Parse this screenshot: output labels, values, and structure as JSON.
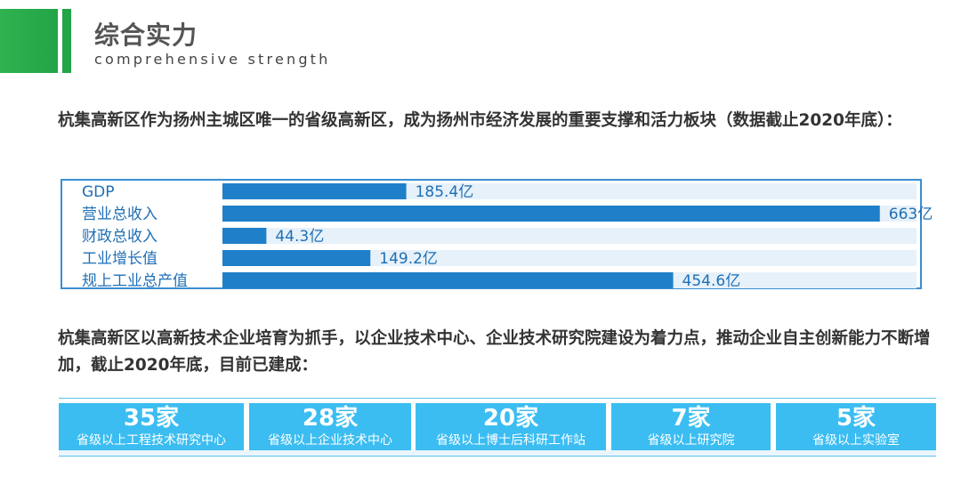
{
  "header": {
    "title": "综合实力",
    "subtitle": "comprehensive strength"
  },
  "intro_text": "杭集高新区作为扬州主城区唯一的省级高新区，成为扬州市经济发展的重要支撑和活力板块（数据截止2020年底）：",
  "chart_data": {
    "type": "bar",
    "orientation": "horizontal",
    "unit": "亿",
    "categories": [
      "GDP",
      "营业总收入",
      "财政总收入",
      "工业增长值",
      "规上工业总产值"
    ],
    "values": [
      185.4,
      663,
      44.3,
      149.2,
      454.6
    ],
    "data_labels": [
      "185.4亿",
      "663亿",
      "44.3亿",
      "149.2亿",
      "454.6亿"
    ],
    "title": "",
    "xlabel": "",
    "ylabel": "",
    "xlim": [
      0,
      700
    ],
    "grid": false,
    "bar_color": "#1f7fc9",
    "track_color": "#e6f1fa"
  },
  "second_text": "杭集高新区以高新技术企业培育为抓手，以企业技术中心、企业技术研究院建设为着力点，推动企业自主创新能力不断增加，截止2020年底，目前已建成：",
  "stats": [
    {
      "value": "35家",
      "label": "省级以上工程技术研究中心"
    },
    {
      "value": "28家",
      "label": "省级以上企业技术中心"
    },
    {
      "value": "20家",
      "label": "省级以上博士后科研工作站"
    },
    {
      "value": "7家",
      "label": "省级以上研究院"
    },
    {
      "value": "5家",
      "label": "省级以上实验室"
    }
  ],
  "colors": {
    "accent_green": "#23a447",
    "chart_border": "#3a8fd3",
    "stat_card": "#3bbdf2"
  }
}
